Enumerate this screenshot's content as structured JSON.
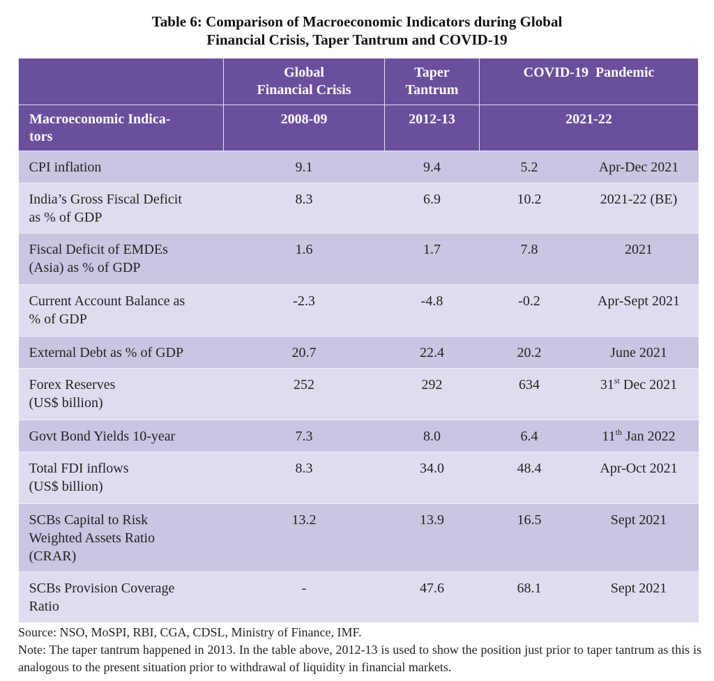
{
  "title": {
    "line1": "Table 6: Comparison of Macroeconomic Indicators during Global",
    "line2": "Financial Crisis, Taper Tantrum and COVID-19"
  },
  "header": {
    "gfc_line1": "Global",
    "gfc_line2": "Financial Crisis",
    "taper_line1": "Taper",
    "taper_line2": "Tantrum",
    "covid": "COVID-19  Pandemic",
    "indicators_line1": "Macroeconomic Indica-",
    "indicators_line2": "tors",
    "gfc_period": "2008-09",
    "taper_period": "2012-13",
    "covid_period": "2021-22"
  },
  "rows": [
    {
      "l1": "CPI inflation",
      "l2": "",
      "l3": "",
      "gfc": "9.1",
      "taper": "9.4",
      "covid": "5.2",
      "date": "Apr-Dec 2021",
      "sup": "",
      "date_rest": ""
    },
    {
      "l1": "India’s Gross Fiscal Deficit",
      "l2": "as % of GDP",
      "l3": "",
      "gfc": "8.3",
      "taper": "6.9",
      "covid": "10.2",
      "date": "2021-22 (BE)",
      "sup": "",
      "date_rest": ""
    },
    {
      "l1": "Fiscal Deficit of EMDEs",
      "l2": "(Asia) as % of GDP",
      "l3": "",
      "gfc": "1.6",
      "taper": "1.7",
      "covid": "7.8",
      "date": "2021",
      "sup": "",
      "date_rest": ""
    },
    {
      "l1": "Current Account Balance as",
      "l2": "% of GDP",
      "l3": "",
      "gfc": "-2.3",
      "taper": "-4.8",
      "covid": "-0.2",
      "date": "Apr-Sept 2021",
      "sup": "",
      "date_rest": ""
    },
    {
      "l1": "External Debt as % of GDP",
      "l2": "",
      "l3": "",
      "gfc": "20.7",
      "taper": "22.4",
      "covid": "20.2",
      "date": "June 2021",
      "sup": "",
      "date_rest": ""
    },
    {
      "l1": "Forex Reserves",
      "l2": "(US$ billion)",
      "l3": "",
      "gfc": "252",
      "taper": "292",
      "covid": "634",
      "date": "31",
      "sup": "st",
      "date_rest": " Dec 2021"
    },
    {
      "l1": "Govt Bond Yields 10-year",
      "l2": "",
      "l3": "",
      "gfc": "7.3",
      "taper": "8.0",
      "covid": "6.4",
      "date": "11",
      "sup": "th",
      "date_rest": " Jan 2022"
    },
    {
      "l1": "Total FDI inflows",
      "l2": "(US$ billion)",
      "l3": "",
      "gfc": "8.3",
      "taper": "34.0",
      "covid": "48.4",
      "date": "Apr-Oct 2021",
      "sup": "",
      "date_rest": ""
    },
    {
      "l1": "SCBs Capital to Risk",
      "l2": "Weighted Assets Ratio",
      "l3": "(CRAR)",
      "gfc": "13.2",
      "taper": "13.9",
      "covid": "16.5",
      "date": "Sept 2021",
      "sup": "",
      "date_rest": ""
    },
    {
      "l1": "SCBs Provision Coverage",
      "l2": "Ratio",
      "l3": "",
      "gfc": "-",
      "taper": "47.6",
      "covid": "68.1",
      "date": "Sept 2021",
      "sup": "",
      "date_rest": ""
    }
  ],
  "footer": {
    "source": "Source: NSO, MoSPI, RBI, CGA, CDSL, Ministry of Finance, IMF.",
    "note": "Note: The taper tantrum happened in 2013. In the table above, 2012-13 is used to show the position just prior to taper tantrum as this is analogous to the present situation prior to withdrawal of liquidity in financial markets."
  }
}
